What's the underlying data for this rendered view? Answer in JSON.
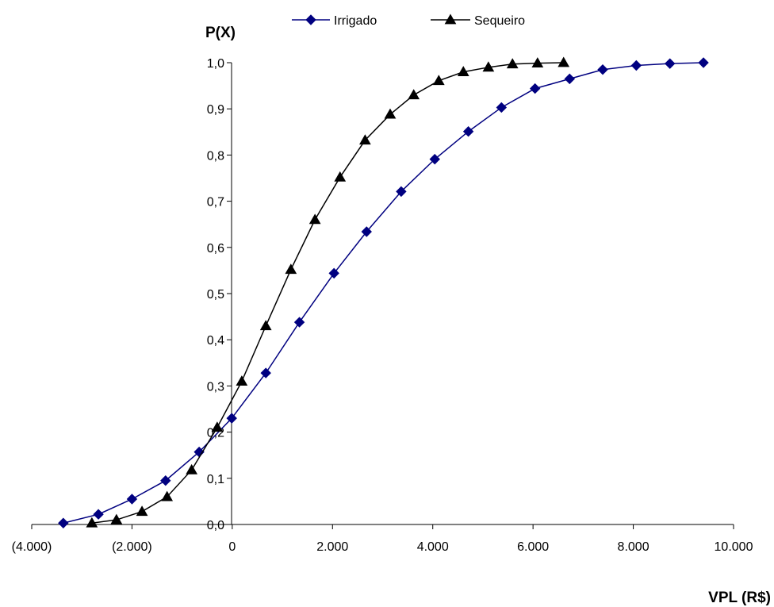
{
  "chart_data": {
    "type": "line",
    "ylabel": "P(X)",
    "xlabel": "VPL (R$)",
    "xlim": [
      -4000,
      10000
    ],
    "ylim": [
      0,
      1
    ],
    "x_ticks": [
      -4000,
      -2000,
      0,
      2000,
      4000,
      6000,
      8000,
      10000
    ],
    "x_tick_labels": [
      "(4.000)",
      "(2.000)",
      "0",
      "2.000",
      "4.000",
      "6.000",
      "8.000",
      "10.000"
    ],
    "y_ticks": [
      0,
      0.1,
      0.2,
      0.3,
      0.4,
      0.5,
      0.6,
      0.7,
      0.8,
      0.9,
      1.0
    ],
    "y_tick_labels": [
      "0,0",
      "0,1",
      "0,2",
      "0,3",
      "0,4",
      "0,5",
      "0,6",
      "0,7",
      "0,8",
      "0,9",
      "1,0"
    ],
    "grid": false,
    "legend": "top",
    "series": [
      {
        "name": "Irrigado",
        "color": "#000080",
        "marker": "diamond",
        "x": [
          -3370,
          -2670,
          -2000,
          -1330,
          -660,
          -10,
          670,
          1340,
          2030,
          2680,
          3370,
          4040,
          4710,
          5370,
          6040,
          6730,
          7390,
          8060,
          8730,
          9400
        ],
        "y": [
          0.003,
          0.022,
          0.055,
          0.095,
          0.157,
          0.23,
          0.328,
          0.438,
          0.544,
          0.634,
          0.721,
          0.791,
          0.851,
          0.903,
          0.944,
          0.965,
          0.985,
          0.994,
          0.998,
          1.0
        ]
      },
      {
        "name": "Sequeiro",
        "color": "#000000",
        "marker": "triangle",
        "x": [
          -2800,
          -2310,
          -1800,
          -1300,
          -810,
          -300,
          190,
          670,
          1170,
          1650,
          2150,
          2650,
          3150,
          3620,
          4120,
          4610,
          5110,
          5590,
          6090,
          6610
        ],
        "y": [
          0.003,
          0.01,
          0.028,
          0.06,
          0.118,
          0.21,
          0.31,
          0.43,
          0.552,
          0.66,
          0.752,
          0.832,
          0.888,
          0.93,
          0.961,
          0.98,
          0.99,
          0.997,
          0.999,
          1.0
        ]
      }
    ]
  }
}
